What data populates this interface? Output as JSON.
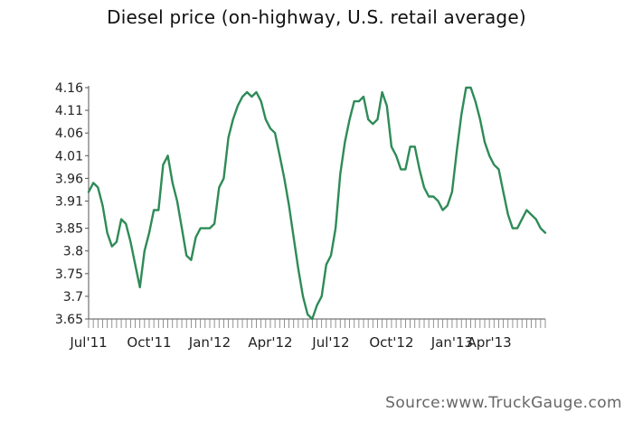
{
  "chart_data": {
    "type": "line",
    "title": "Diesel price (on-highway, U.S. retail average)",
    "source": "Source:www.TruckGauge.com",
    "xlabel": "",
    "ylabel": "",
    "ylim": [
      3.65,
      4.16
    ],
    "yticks": [
      "3.65",
      "3.7",
      "3.75",
      "3.8",
      "3.85",
      "3.91",
      "3.96",
      "4.01",
      "4.06",
      "4.11",
      "4.16"
    ],
    "xtick_labels": [
      {
        "label": "Jul'11",
        "week": 0
      },
      {
        "label": "Oct'11",
        "week": 13
      },
      {
        "label": "Jan'12",
        "week": 26
      },
      {
        "label": "Apr'12",
        "week": 39
      },
      {
        "label": "Jul'12",
        "week": 52
      },
      {
        "label": "Oct'12",
        "week": 65
      },
      {
        "label": "Jan'13",
        "week": 78
      },
      {
        "label": "Apr'13",
        "week": 86
      }
    ],
    "grid": false,
    "series": [
      {
        "color": "#2e8b57",
        "values": [
          3.93,
          3.95,
          3.94,
          3.9,
          3.84,
          3.81,
          3.82,
          3.87,
          3.86,
          3.82,
          3.77,
          3.72,
          3.8,
          3.84,
          3.89,
          3.89,
          3.99,
          4.01,
          3.95,
          3.91,
          3.85,
          3.79,
          3.78,
          3.83,
          3.85,
          3.85,
          3.85,
          3.86,
          3.94,
          3.96,
          4.05,
          4.09,
          4.12,
          4.14,
          4.15,
          4.14,
          4.15,
          4.13,
          4.09,
          4.07,
          4.06,
          4.01,
          3.96,
          3.9,
          3.83,
          3.76,
          3.7,
          3.66,
          3.65,
          3.68,
          3.7,
          3.77,
          3.79,
          3.85,
          3.97,
          4.04,
          4.09,
          4.13,
          4.13,
          4.14,
          4.09,
          4.08,
          4.09,
          4.15,
          4.12,
          4.03,
          4.01,
          3.98,
          3.98,
          4.03,
          4.03,
          3.98,
          3.94,
          3.92,
          3.92,
          3.91,
          3.89,
          3.9,
          3.93,
          4.02,
          4.1,
          4.16,
          4.16,
          4.13,
          4.09,
          4.04,
          4.01,
          3.99,
          3.98,
          3.93,
          3.88,
          3.85,
          3.85,
          3.87,
          3.89,
          3.88,
          3.87,
          3.85,
          3.84
        ]
      }
    ]
  }
}
